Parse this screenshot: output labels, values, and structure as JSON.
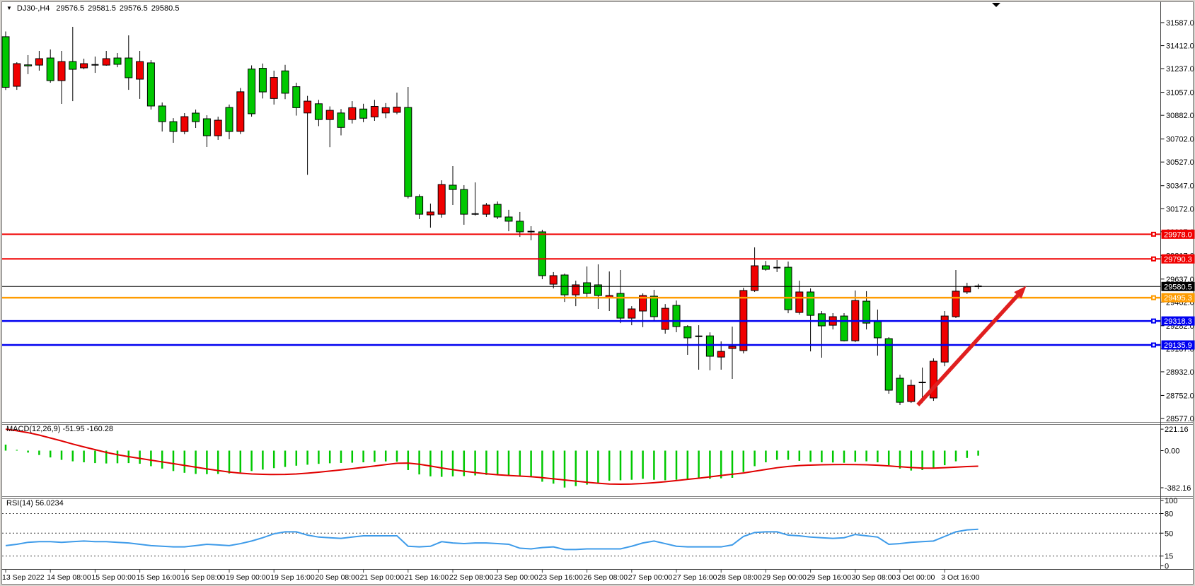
{
  "header": {
    "symbol": "DJ30-,H4",
    "open": "29576.5",
    "high": "29581.5",
    "low": "29576.5",
    "close": "29580.5"
  },
  "icons": {
    "dropdown": "▼",
    "chart_shift": "▼"
  },
  "indicators": {
    "macd_label": "MACD(12,26,9) -51.95 -160.28",
    "rsi_label": "RSI(14) 56.0234"
  },
  "price_axis": {
    "ticks": [
      "31587.0",
      "31412.0",
      "31237.0",
      "31057.0",
      "30882.0",
      "30702.0",
      "30527.0",
      "30347.0",
      "30172.0",
      "29997.0",
      "29817.0",
      "29637.0",
      "29462.0",
      "29282.0",
      "29107.0",
      "28932.0",
      "28752.0",
      "28577.0"
    ]
  },
  "macd_axis": [
    "221.16",
    "0.00",
    "-382.16"
  ],
  "rsi_axis": [
    "100",
    "80",
    "50",
    "15",
    "0"
  ],
  "time_axis": [
    "13 Sep 2022",
    "14 Sep 08:00",
    "15 Sep 00:00",
    "15 Sep 16:00",
    "16 Sep 08:00",
    "19 Sep 00:00",
    "19 Sep 16:00",
    "20 Sep 08:00",
    "21 Sep 00:00",
    "21 Sep 16:00",
    "22 Sep 08:00",
    "23 Sep 00:00",
    "23 Sep 16:00",
    "26 Sep 08:00",
    "27 Sep 00:00",
    "27 Sep 16:00",
    "28 Sep 08:00",
    "29 Sep 00:00",
    "29 Sep 16:00",
    "30 Sep 08:00",
    "3 Oct 00:00",
    "3 Oct 16:00"
  ],
  "colors": {
    "bull": "#f00000",
    "bear": "#00c800",
    "doji": "#000000",
    "macd_hist": "#00c800",
    "macd_signal": "#e00000",
    "rsi_line": "#3e9be9",
    "arrow": "#e01f1f"
  },
  "chart_data": {
    "type": "candlestick",
    "symbol": "DJ30-",
    "timeframe": "H4",
    "title": "DJ30-,H4 29576.5 29581.5 29576.5 29580.5",
    "ylim": [
      28577.0,
      31587.0
    ],
    "candle_format": [
      "color(g=down,r=up,d=doji)",
      "body_top",
      "body_bottom",
      "high",
      "low"
    ],
    "candles": [
      [
        "g",
        31480,
        31095,
        31520,
        31075
      ],
      [
        "r",
        31275,
        31103,
        31286,
        31076
      ],
      [
        "g",
        31266,
        31260,
        31340,
        31195
      ],
      [
        "r",
        31313,
        31264,
        31372,
        31222
      ],
      [
        "g",
        31318,
        31146,
        31383,
        31130
      ],
      [
        "r",
        31291,
        31146,
        31372,
        30969
      ],
      [
        "g",
        31291,
        31232,
        31555,
        30990
      ],
      [
        "r",
        31275,
        31243,
        31313,
        31232
      ],
      [
        "d",
        31266,
        31262,
        31329,
        31205
      ],
      [
        "r",
        31313,
        31264,
        31372,
        31259
      ],
      [
        "g",
        31318,
        31270,
        31356,
        31248
      ],
      [
        "g",
        31318,
        31168,
        31490,
        31076
      ],
      [
        "r",
        31291,
        31157,
        31372,
        31007
      ],
      [
        "g",
        31281,
        30953,
        31302,
        30926
      ],
      [
        "g",
        30953,
        30834,
        30980,
        30759
      ],
      [
        "g",
        30834,
        30759,
        30861,
        30673
      ],
      [
        "r",
        30872,
        30759,
        30899,
        30738
      ],
      [
        "g",
        30899,
        30834,
        30926,
        30786
      ],
      [
        "g",
        30856,
        30727,
        30883,
        30641
      ],
      [
        "r",
        30845,
        30727,
        30872,
        30695
      ],
      [
        "g",
        30942,
        30759,
        30964,
        30700
      ],
      [
        "r",
        31061,
        30760,
        31090,
        30740
      ],
      [
        "g",
        31234,
        30894,
        31262,
        30872
      ],
      [
        "g",
        31240,
        31060,
        31276,
        31010
      ],
      [
        "r",
        31170,
        31010,
        31222,
        30964
      ],
      [
        "g",
        31220,
        31050,
        31266,
        31005
      ],
      [
        "g",
        31100,
        30940,
        31130,
        30880
      ],
      [
        "r",
        30990,
        30900,
        31030,
        30430
      ],
      [
        "g",
        30970,
        30850,
        31000,
        30800
      ],
      [
        "r",
        30920,
        30850,
        30950,
        30640
      ],
      [
        "g",
        30900,
        30790,
        30930,
        30730
      ],
      [
        "r",
        30940,
        30850,
        30990,
        30820
      ],
      [
        "g",
        30930,
        30860,
        30970,
        30830
      ],
      [
        "r",
        30950,
        30870,
        31000,
        30840
      ],
      [
        "r",
        30940,
        30900,
        30975,
        30860
      ],
      [
        "r",
        30945,
        30905,
        31055,
        30890
      ],
      [
        "g",
        30942,
        30265,
        31098,
        30250
      ],
      [
        "g",
        30265,
        30130,
        30281,
        30093
      ],
      [
        "r",
        30147,
        30125,
        30211,
        30028
      ],
      [
        "r",
        30356,
        30130,
        30388,
        30104
      ],
      [
        "g",
        30351,
        30318,
        30496,
        30200
      ],
      [
        "g",
        30318,
        30130,
        30351,
        30050
      ],
      [
        "d",
        30132,
        30128,
        30372,
        30120
      ],
      [
        "r",
        30200,
        30130,
        30216,
        30109
      ],
      [
        "g",
        30205,
        30109,
        30227,
        30093
      ],
      [
        "g",
        30109,
        30077,
        30163,
        30001
      ],
      [
        "g",
        30077,
        29996,
        30147,
        29958
      ],
      [
        "d",
        29998,
        29994,
        30039,
        29932
      ],
      [
        "g",
        29996,
        29663,
        30012,
        29636
      ],
      [
        "r",
        29663,
        29598,
        29690,
        29566
      ],
      [
        "g",
        29668,
        29517,
        29679,
        29463
      ],
      [
        "r",
        29593,
        29517,
        29625,
        29431
      ],
      [
        "g",
        29609,
        29528,
        29733,
        29501
      ],
      [
        "g",
        29593,
        29512,
        29749,
        29410
      ],
      [
        "r",
        29512,
        29496,
        29695,
        29394
      ],
      [
        "g",
        29528,
        29340,
        29706,
        29302
      ],
      [
        "r",
        29410,
        29340,
        29431,
        29286
      ],
      [
        "r",
        29512,
        29394,
        29528,
        29271
      ],
      [
        "g",
        29507,
        29351,
        29555,
        29313
      ],
      [
        "r",
        29415,
        29254,
        29447,
        29222
      ],
      [
        "g",
        29437,
        29276,
        29474,
        29233
      ],
      [
        "g",
        29276,
        29190,
        29286,
        29061
      ],
      [
        "d",
        29202,
        29198,
        29286,
        28948
      ],
      [
        "g",
        29205,
        29050,
        29232,
        28943
      ],
      [
        "r",
        29087,
        29044,
        29163,
        28948
      ],
      [
        "r",
        29125,
        29109,
        29276,
        28878
      ],
      [
        "r",
        29550,
        29093,
        29571,
        29072
      ],
      [
        "r",
        29738,
        29550,
        29878,
        29539
      ],
      [
        "g",
        29738,
        29711,
        29775,
        29700
      ],
      [
        "d",
        29724,
        29720,
        29781,
        29690
      ],
      [
        "g",
        29727,
        29404,
        29770,
        29377
      ],
      [
        "r",
        29539,
        29383,
        29625,
        29367
      ],
      [
        "g",
        29539,
        29361,
        29566,
        29087
      ],
      [
        "g",
        29373,
        29281,
        29394,
        29039
      ],
      [
        "r",
        29351,
        29286,
        29378,
        29254
      ],
      [
        "g",
        29356,
        29168,
        29378,
        29163
      ],
      [
        "r",
        29474,
        29168,
        29550,
        29157
      ],
      [
        "g",
        29469,
        29302,
        29545,
        29254
      ],
      [
        "g",
        29313,
        29190,
        29405,
        29055
      ],
      [
        "g",
        29184,
        28792,
        29195,
        28765
      ],
      [
        "g",
        28883,
        28700,
        28910,
        28679
      ],
      [
        "r",
        28829,
        28706,
        28872,
        28695
      ],
      [
        "d",
        28851,
        28845,
        28964,
        28695
      ],
      [
        "r",
        29012,
        28733,
        29034,
        28711
      ],
      [
        "r",
        29356,
        29006,
        29394,
        28974
      ],
      [
        "r",
        29545,
        29351,
        29706,
        29340
      ],
      [
        "r",
        29577,
        29539,
        29609,
        29523
      ],
      [
        "d",
        29582,
        29578,
        29600,
        29560
      ]
    ],
    "macd": {
      "params": "12,26,9",
      "value": -51.95,
      "signal_value": -160.28,
      "ylim": [
        -382.16,
        221.16
      ],
      "histogram": [
        62,
        8,
        -20,
        -45,
        -70,
        -95,
        -110,
        -120,
        -128,
        -132,
        -130,
        -128,
        -135,
        -160,
        -185,
        -210,
        -228,
        -240,
        -242,
        -240,
        -235,
        -225,
        -210,
        -195,
        -180,
        -168,
        -155,
        -145,
        -136,
        -130,
        -127,
        -124,
        -120,
        -116,
        -111,
        -114,
        -200,
        -245,
        -265,
        -270,
        -265,
        -262,
        -255,
        -250,
        -248,
        -252,
        -258,
        -262,
        -320,
        -340,
        -380,
        -365,
        -350,
        -330,
        -310,
        -305,
        -300,
        -290,
        -300,
        -305,
        -300,
        -295,
        -290,
        -290,
        -285,
        -280,
        -220,
        -160,
        -120,
        -95,
        -95,
        -105,
        -115,
        -120,
        -122,
        -125,
        -115,
        -110,
        -120,
        -150,
        -185,
        -205,
        -200,
        -180,
        -150,
        -110,
        -75,
        -52
      ],
      "signal": [
        221,
        205,
        185,
        160,
        130,
        100,
        68,
        38,
        10,
        -18,
        -42,
        -62,
        -80,
        -98,
        -116,
        -134,
        -152,
        -170,
        -188,
        -205,
        -220,
        -232,
        -240,
        -244,
        -246,
        -245,
        -240,
        -232,
        -222,
        -210,
        -198,
        -186,
        -172,
        -158,
        -144,
        -130,
        -128,
        -140,
        -158,
        -178,
        -196,
        -212,
        -226,
        -238,
        -248,
        -256,
        -262,
        -268,
        -278,
        -290,
        -302,
        -314,
        -326,
        -336,
        -344,
        -346,
        -344,
        -338,
        -330,
        -320,
        -308,
        -296,
        -284,
        -270,
        -256,
        -243,
        -230,
        -212,
        -194,
        -176,
        -163,
        -154,
        -149,
        -146,
        -144,
        -143,
        -144,
        -146,
        -150,
        -157,
        -166,
        -174,
        -179,
        -180,
        -176,
        -170,
        -164,
        -160
      ]
    },
    "rsi": {
      "period": 14,
      "current": 56.0234,
      "levels": [
        80,
        50,
        15
      ],
      "values": [
        31,
        33,
        36,
        37,
        37,
        36,
        37,
        38,
        37,
        37,
        36,
        35,
        33,
        31,
        30,
        29,
        29,
        31,
        33,
        32,
        31,
        34,
        38,
        43,
        49,
        52,
        52,
        47,
        44,
        43,
        42,
        44,
        46,
        46,
        46,
        46,
        30,
        29,
        30,
        37,
        35,
        34,
        35,
        35,
        34,
        33,
        27,
        26,
        28,
        29,
        25,
        25,
        26,
        26,
        26,
        26,
        30,
        35,
        38,
        34,
        30,
        29,
        29,
        29,
        29,
        32,
        45,
        51,
        52,
        52,
        47,
        46,
        44,
        43,
        42,
        43,
        48,
        46,
        44,
        33,
        34,
        36,
        37,
        38,
        45,
        52,
        55,
        56
      ]
    },
    "hlines": [
      {
        "label": "29978.0",
        "price": 29978.0,
        "color": "#f00000",
        "width": 2,
        "marker": true
      },
      {
        "label": "29790.3",
        "price": 29790.3,
        "color": "#f00000",
        "width": 2,
        "marker": true
      },
      {
        "label": "29580.5",
        "price": 29580.5,
        "color": "#000000",
        "width": 1,
        "marker": false
      },
      {
        "label": "29495.3",
        "price": 29495.3,
        "color": "#ff9c00",
        "width": 2.5,
        "marker": true
      },
      {
        "label": "29318.3",
        "price": 29318.3,
        "color": "#0000f0",
        "width": 2.5,
        "marker": true
      },
      {
        "label": "29135.9",
        "price": 29135.9,
        "color": "#0000f0",
        "width": 2.5,
        "marker": true
      }
    ],
    "trend_arrow": {
      "from_index": 81.6,
      "from_price": 28680,
      "to_index": 91.3,
      "to_price": 29585
    }
  }
}
